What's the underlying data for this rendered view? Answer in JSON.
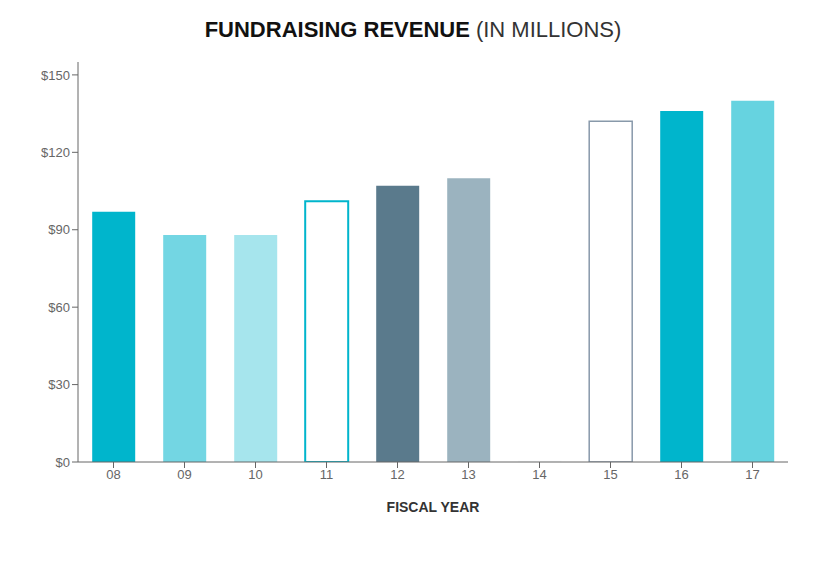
{
  "chart_data": {
    "type": "bar",
    "title": "FUNDRAISING REVENUE",
    "subtitle": "(IN MILLIONS)",
    "xlabel": "FISCAL YEAR",
    "categories": [
      "08",
      "09",
      "10",
      "11",
      "12",
      "13",
      "14",
      "15",
      "16",
      "17"
    ],
    "values": [
      97,
      88,
      88,
      101,
      107,
      110,
      0.5,
      132,
      136,
      140
    ],
    "colors": [
      "#00b5cc",
      "#00b5cc",
      "#00b5cc",
      "#ffffff",
      "#5a7a8c",
      "#7a9aaa",
      "#f0f4f6",
      "#ffffff",
      "#00b5cc",
      "#00b5cc"
    ],
    "ylim": [
      0,
      155
    ],
    "yticks": [
      {
        "value": 0,
        "label": "$0"
      },
      {
        "value": 30,
        "label": "$30"
      },
      {
        "value": 60,
        "label": "$60"
      },
      {
        "value": 90,
        "label": "$90"
      },
      {
        "value": 120,
        "label": "$120"
      },
      {
        "value": 150,
        "label": "$150"
      }
    ],
    "grid": false
  }
}
